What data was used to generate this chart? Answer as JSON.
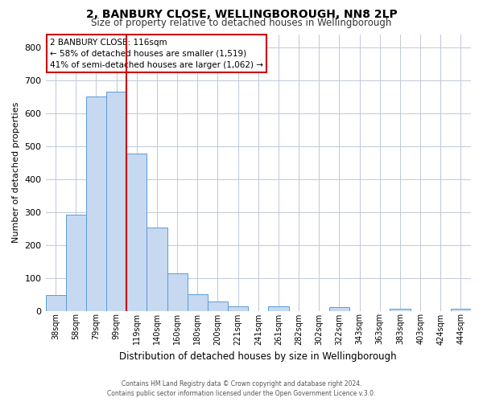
{
  "title": "2, BANBURY CLOSE, WELLINGBOROUGH, NN8 2LP",
  "subtitle": "Size of property relative to detached houses in Wellingborough",
  "xlabel": "Distribution of detached houses by size in Wellingborough",
  "ylabel": "Number of detached properties",
  "bar_labels": [
    "38sqm",
    "58sqm",
    "79sqm",
    "99sqm",
    "119sqm",
    "140sqm",
    "160sqm",
    "180sqm",
    "200sqm",
    "221sqm",
    "241sqm",
    "261sqm",
    "282sqm",
    "302sqm",
    "322sqm",
    "343sqm",
    "363sqm",
    "383sqm",
    "403sqm",
    "424sqm",
    "444sqm"
  ],
  "bar_values": [
    48,
    293,
    651,
    665,
    478,
    253,
    113,
    49,
    28,
    14,
    0,
    13,
    0,
    0,
    10,
    0,
    0,
    5,
    0,
    0,
    5
  ],
  "bar_color": "#c6d9f0",
  "bar_edge_color": "#5b9bd5",
  "vline_x": 3.5,
  "vline_color": "#cc0000",
  "annotation_title": "2 BANBURY CLOSE: 116sqm",
  "annotation_line1": "← 58% of detached houses are smaller (1,519)",
  "annotation_line2": "41% of semi-detached houses are larger (1,062) →",
  "annotation_box_color": "#cc0000",
  "ylim": [
    0,
    840
  ],
  "yticks": [
    0,
    100,
    200,
    300,
    400,
    500,
    600,
    700,
    800
  ],
  "footer1": "Contains HM Land Registry data © Crown copyright and database right 2024.",
  "footer2": "Contains public sector information licensed under the Open Government Licence v.3.0.",
  "bg_color": "#ffffff",
  "grid_color": "#c0c8d8"
}
